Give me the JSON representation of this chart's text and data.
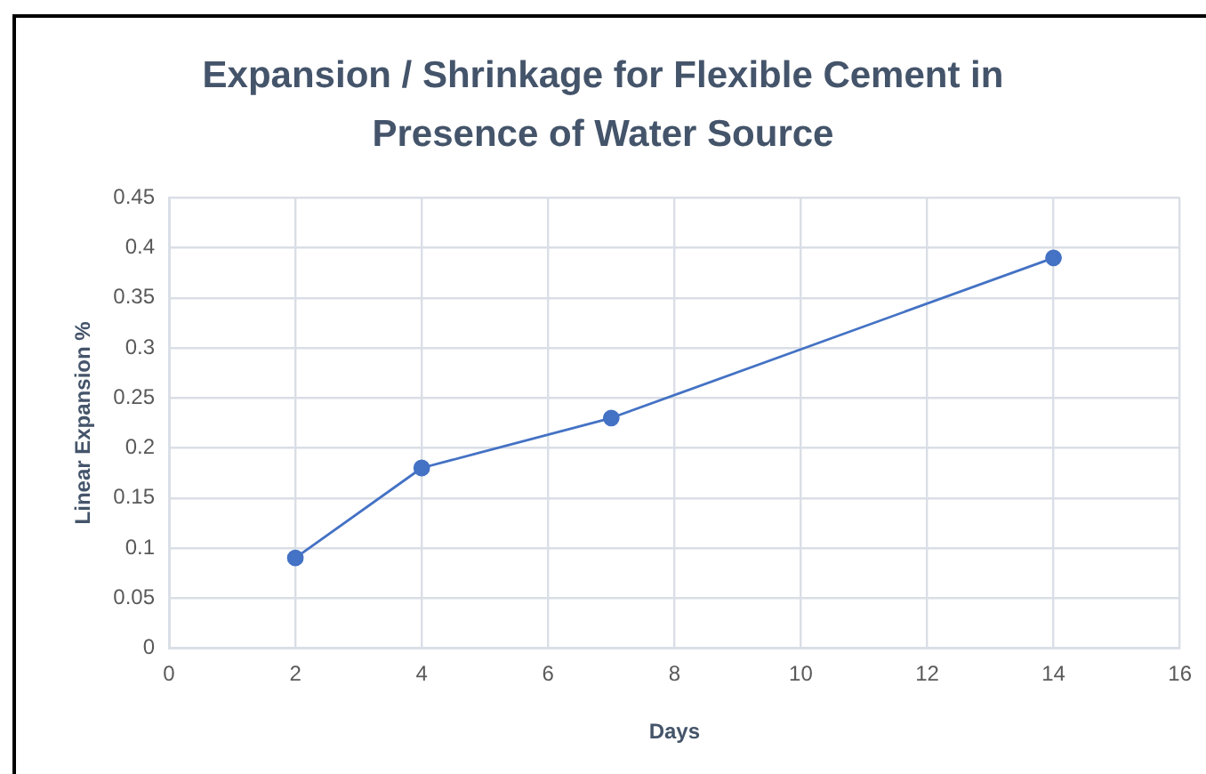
{
  "chart_data": {
    "type": "line",
    "title": "Expansion / Shrinkage for Flexible Cement in Presence of Water Source",
    "xlabel": "Days",
    "ylabel": "Linear Expansion %",
    "x": [
      2,
      4,
      7,
      14
    ],
    "series": [
      {
        "color": "#4472c4",
        "values": [
          0.09,
          0.18,
          0.23,
          0.39
        ]
      }
    ],
    "xlim": [
      0,
      16
    ],
    "xticks": [
      0,
      2,
      4,
      6,
      8,
      10,
      12,
      14,
      16
    ],
    "ylim": [
      0,
      0.45
    ],
    "yticks": [
      0,
      0.05,
      0.1,
      0.15,
      0.2,
      0.25,
      0.3,
      0.35,
      0.4,
      0.45
    ],
    "grid": true,
    "marker": "circle",
    "line_style": "solid"
  }
}
